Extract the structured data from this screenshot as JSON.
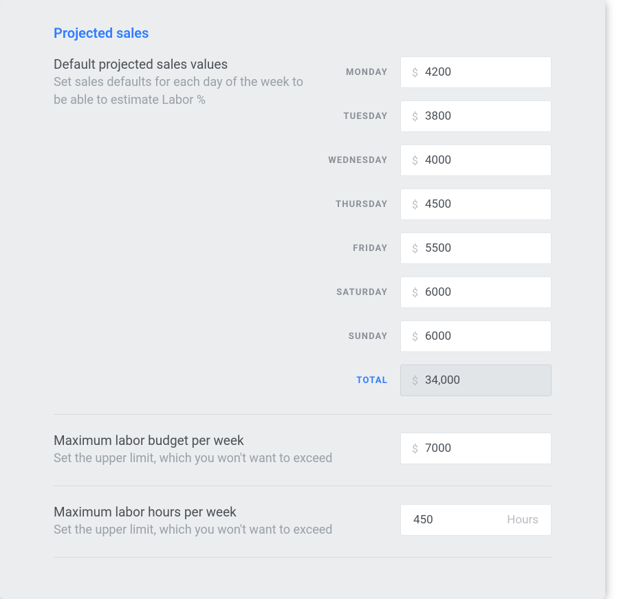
{
  "colors": {
    "panel_bg": "#ebedef",
    "accent": "#2f7dff",
    "heading_text": "#4a4f55",
    "muted_text": "#9aa0a8",
    "label_text": "#8a8f97",
    "input_bg": "#ffffff",
    "input_border": "#e3e6ea",
    "readonly_bg": "#e2e5e8",
    "readonly_border": "#cfd3d8",
    "divider": "#d7dbe0",
    "currency_text": "#b8bcc2"
  },
  "section_title": "Projected sales",
  "defaults": {
    "heading": "Default projected sales values",
    "subhead": "Set sales defaults for each day of the week to be able to estimate Labor %",
    "currency_symbol": "$",
    "days": [
      {
        "key": "monday",
        "label": "MONDAY",
        "value": "4200"
      },
      {
        "key": "tuesday",
        "label": "TUESDAY",
        "value": "3800"
      },
      {
        "key": "wednesday",
        "label": "WEDNESDAY",
        "value": "4000"
      },
      {
        "key": "thursday",
        "label": "THURSDAY",
        "value": "4500"
      },
      {
        "key": "friday",
        "label": "FRIDAY",
        "value": "5500"
      },
      {
        "key": "saturday",
        "label": "SATURDAY",
        "value": "6000"
      },
      {
        "key": "sunday",
        "label": "SUNDAY",
        "value": "6000"
      }
    ],
    "total_label": "TOTAL",
    "total_value": "34,000"
  },
  "labor_budget": {
    "heading": "Maximum labor budget per week",
    "subhead": "Set the upper limit, which you won't want to exceed",
    "currency_symbol": "$",
    "value": "7000"
  },
  "labor_hours": {
    "heading": "Maximum labor hours per week",
    "subhead": "Set the upper limit, which you won't want to exceed",
    "value": "450",
    "unit": "Hours"
  }
}
